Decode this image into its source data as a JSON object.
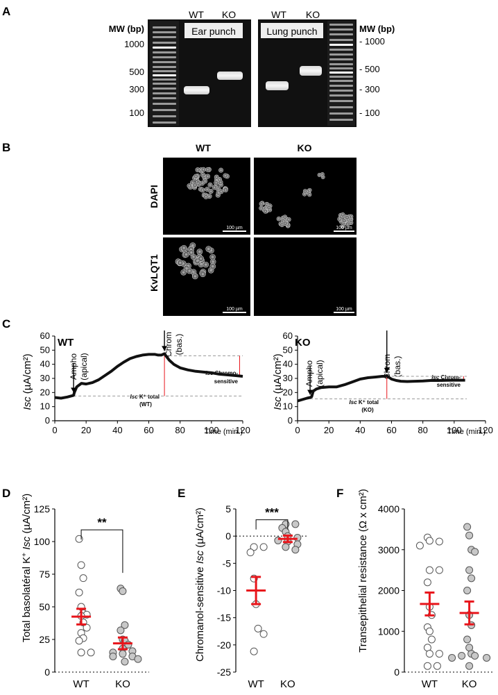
{
  "panels": {
    "a": "A",
    "b": "B",
    "c": "C",
    "d": "D",
    "e": "E",
    "f": "F"
  },
  "gel": {
    "mw_label": "MW (bp)",
    "left_ticks": [
      "1000",
      "500",
      "300",
      "100"
    ],
    "right_ticks": [
      "- 1000",
      "- 500",
      "- 300",
      "- 100"
    ],
    "ear": {
      "wt": "WT",
      "ko": "KO",
      "title": "Ear punch"
    },
    "lung": {
      "wt": "WT",
      "ko": "KO",
      "title": "Lung punch"
    }
  },
  "micro": {
    "col_wt": "WT",
    "col_ko": "KO",
    "row_dapi": "DAPI",
    "row_kvlqt1": "KvLQT1",
    "scale": "100 µm"
  },
  "panelC": {
    "y_label_italic": "Isc",
    "y_label_unit": " (µA/cm²)",
    "x_label": "Time (min.)",
    "y_ticks": [
      "0",
      "10",
      "20",
      "30",
      "40",
      "50",
      "60"
    ],
    "wt": {
      "tag": "WT",
      "x_ticks": [
        "0",
        "20",
        "40",
        "60",
        "80",
        "100",
        "120"
      ],
      "ampho": "Ampho",
      "ampho_sub": "(apical)",
      "chrom": "Chrom",
      "chrom_sub": "(bas.)",
      "ktotal_italic": "Isc",
      "ktotal_rest": " K⁺ total",
      "ktotal_group": "(WT)",
      "sens_italic": "Isc",
      "sens_rest": " Chromo-",
      "sens_line2": "sensitive"
    },
    "ko": {
      "tag": "KO",
      "x_ticks": [
        "0",
        "20",
        "40",
        "60",
        "80",
        "100",
        "120"
      ],
      "ampho": "Ampho",
      "ampho_sub": "(apical)",
      "chrom": "Chrom",
      "chrom_sub": "(bas.)",
      "ktotal_italic": "Isc",
      "ktotal_rest": " K⁺ total",
      "ktotal_group": "(KO)",
      "sens_italic": "Isc",
      "sens_rest": " Chrom-",
      "sens_line2": "sensitive"
    }
  },
  "panelD": {
    "ylabel_a": "Total basolatéral K",
    "ylabel_sup": "+",
    "ylabel_italic": " Isc",
    "ylabel_b": " (µA/cm²)",
    "y_ticks": [
      "0",
      "25",
      "50",
      "75",
      "100",
      "125"
    ],
    "sig": "**",
    "groups": [
      "WT",
      "KO"
    ]
  },
  "panelE": {
    "ylabel_a": "Chromanol-sensitive ",
    "ylabel_italic": "Isc",
    "ylabel_b": " (µA/cm²)",
    "y_ticks": [
      "5",
      "0",
      "-5",
      "-10",
      "-15",
      "-20",
      "-25"
    ],
    "sig": "***",
    "groups": [
      "WT",
      "KO"
    ]
  },
  "panelF": {
    "ylabel": "Transepithelial resistance (Ω x cm²)",
    "y_ticks": [
      "0",
      "1000",
      "2000",
      "3000",
      "4000"
    ],
    "groups": [
      "WT",
      "KO"
    ]
  },
  "colors": {
    "mean_bar": "#e8151b",
    "ko_fill": "#c8c8c8",
    "ref_line": "#e8151b"
  },
  "chart_data": [
    {
      "type": "line",
      "panel": "C",
      "tag": "WT",
      "xlabel": "Time (min.)",
      "ylabel": "Isc (µA/cm²)",
      "xlim": [
        0,
        120
      ],
      "ylim": [
        0,
        60
      ],
      "series": [
        {
          "x": [
            0,
            4,
            8,
            12,
            12.5,
            14,
            17,
            20,
            24,
            28,
            32,
            36,
            40,
            44,
            48,
            52,
            56,
            60,
            64,
            66,
            68,
            70,
            71,
            73,
            76,
            80,
            85,
            90,
            95,
            100,
            105,
            110,
            115,
            120
          ],
          "y": [
            16.5,
            16,
            16.8,
            18,
            20,
            24,
            26.5,
            26,
            27,
            29,
            32,
            35,
            38.5,
            41.5,
            44,
            45.5,
            46.5,
            47,
            47,
            46.5,
            46.5,
            47.5,
            46,
            43,
            40,
            37.5,
            36,
            35,
            34.5,
            34,
            33,
            32.5,
            32,
            31.5
          ]
        }
      ]
    },
    {
      "type": "line",
      "panel": "C",
      "tag": "KO",
      "xlabel": "Time (min.)",
      "ylabel": "Isc (µA/cm²)",
      "xlim": [
        0,
        120
      ],
      "ylim": [
        0,
        60
      ],
      "series": [
        {
          "x": [
            0,
            3,
            6,
            8,
            9,
            10,
            12,
            15,
            20,
            25,
            30,
            35,
            40,
            45,
            50,
            54,
            56,
            57,
            58,
            60,
            63,
            66,
            70,
            75,
            80,
            85,
            90,
            95,
            100,
            105,
            107
          ],
          "y": [
            14,
            15,
            16,
            16.5,
            17,
            21,
            22.5,
            23.5,
            24,
            24,
            25.5,
            27.5,
            29.5,
            30.5,
            31,
            31.5,
            31.5,
            32,
            31,
            29.5,
            28.5,
            28,
            27.8,
            28,
            28.2,
            28.5,
            28.5,
            28.6,
            28.7,
            28.7,
            28.7
          ]
        }
      ]
    },
    {
      "type": "scatter",
      "panel": "D",
      "ylim": [
        0,
        125
      ],
      "categories": [
        "WT",
        "KO"
      ],
      "series": [
        {
          "name": "WT",
          "values": [
            102,
            82,
            72,
            61,
            50,
            45,
            44,
            43,
            38,
            34,
            30,
            26,
            24,
            15,
            15
          ],
          "mean": 42.5,
          "sem": 6
        },
        {
          "name": "KO",
          "values": [
            64,
            62,
            36,
            32,
            25,
            24,
            21,
            18,
            16,
            15,
            14,
            12,
            12,
            10,
            8
          ],
          "mean": 22,
          "sem": 4.5
        }
      ]
    },
    {
      "type": "scatter",
      "panel": "E",
      "ylim": [
        -25,
        5
      ],
      "categories": [
        "WT",
        "KO"
      ],
      "series": [
        {
          "name": "WT",
          "values": [
            -2,
            -2,
            -3,
            -7.8,
            -12.5,
            -17,
            -21.2,
            -18
          ],
          "mean": -10,
          "sem": 2.5
        },
        {
          "name": "KO",
          "values": [
            2.2,
            2.2,
            1.5,
            0.8,
            0,
            -0.3,
            -0.8,
            -1,
            -1.5,
            -2,
            -2.5
          ],
          "mean": -0.5,
          "sem": 0.6
        }
      ]
    },
    {
      "type": "scatter",
      "panel": "F",
      "ylim": [
        0,
        4000
      ],
      "categories": [
        "WT",
        "KO"
      ],
      "series": [
        {
          "name": "WT",
          "values": [
            3300,
            3220,
            3200,
            3100,
            2500,
            2500,
            2200,
            1600,
            1400,
            1100,
            1000,
            800,
            600,
            450,
            450,
            150,
            150
          ],
          "mean": 1670,
          "sem": 280
        },
        {
          "name": "KO",
          "values": [
            3560,
            3350,
            3000,
            2950,
            2500,
            2300,
            2000,
            1400,
            1150,
            800,
            600,
            450,
            400,
            400,
            350,
            350,
            150
          ],
          "mean": 1450,
          "sem": 280
        }
      ]
    }
  ]
}
